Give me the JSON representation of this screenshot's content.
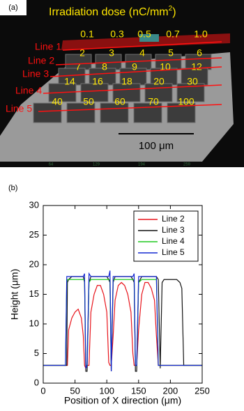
{
  "panel_a": {
    "label": "(a)",
    "title": "Irradiation dose (nC/mm",
    "title_sup": "2",
    "title_end": ")",
    "dose_rows": [
      [
        "0.1",
        "0.3",
        "0.5",
        "0.7",
        "1.0"
      ],
      [
        "2",
        "3",
        "4",
        "5",
        "6"
      ],
      [
        "7",
        "8",
        "9",
        "10",
        "12"
      ],
      [
        "14",
        "16",
        "18",
        "20",
        "30"
      ],
      [
        "40",
        "50",
        "60",
        "70",
        "100"
      ]
    ],
    "lines": [
      "Line 1",
      "Line 2",
      "Line 3",
      "Line 4",
      "Line 5"
    ],
    "scale_bar": "100 μm",
    "bottom_ticks": [
      "64",
      "129",
      "194",
      "259"
    ]
  },
  "chart_data": {
    "type": "line",
    "panel_label": "(b)",
    "x_label": "Position of X direction (μm)",
    "y_label": "Height (μm)",
    "xlim": [
      0,
      250
    ],
    "ylim": [
      0,
      30
    ],
    "xticks": [
      0,
      50,
      100,
      150,
      200,
      250
    ],
    "yticks": [
      0,
      5,
      10,
      15,
      20,
      25,
      30
    ],
    "legend": "upper right",
    "x": [
      0,
      10,
      20,
      30,
      35,
      37,
      38,
      40,
      45,
      50,
      55,
      60,
      63,
      65,
      67,
      69,
      72,
      75,
      80,
      85,
      90,
      95,
      100,
      103,
      105,
      107,
      110,
      113,
      118,
      123,
      128,
      133,
      138,
      141,
      143,
      145,
      147,
      150,
      155,
      160,
      165,
      170,
      175,
      178,
      181,
      184,
      187,
      190,
      195,
      200,
      205,
      210,
      215,
      218,
      221,
      225,
      235,
      250
    ],
    "series": [
      {
        "name": "Line 2",
        "color": "#e8141b",
        "values": [
          3,
          3,
          3,
          3,
          3,
          3,
          3,
          9,
          11,
          12,
          12.5,
          11,
          8,
          3,
          2.5,
          3,
          3,
          12,
          15,
          16.5,
          16.5,
          15,
          12,
          3.5,
          3,
          3,
          8,
          14,
          16.5,
          17,
          16.5,
          15,
          12,
          5,
          3,
          3,
          3,
          9,
          15,
          17,
          17,
          16,
          14,
          8,
          3,
          3,
          3,
          3,
          3,
          3,
          3,
          3,
          3,
          3,
          3,
          3,
          3,
          3
        ]
      },
      {
        "name": "Line 3",
        "color": "#111111",
        "values": [
          3,
          3,
          3,
          3,
          3,
          3,
          17,
          17.5,
          18,
          18,
          18,
          18,
          18,
          17,
          2,
          2,
          17,
          18,
          18,
          18,
          18,
          18,
          18,
          17.5,
          17,
          2,
          17,
          18,
          18,
          18,
          18,
          18,
          18,
          17.5,
          17,
          2,
          2,
          17,
          18,
          18,
          18,
          18,
          18,
          18,
          17.5,
          2.5,
          17,
          17.5,
          17.5,
          17.5,
          17.5,
          17.5,
          17,
          16,
          3,
          3,
          3,
          3
        ]
      },
      {
        "name": "Line 4",
        "color": "#1ec81e",
        "values": [
          3,
          3,
          3,
          3,
          3,
          17,
          17.5,
          17.5,
          17.5,
          17.5,
          17.5,
          17.5,
          17.5,
          17.5,
          3,
          3,
          17,
          17.5,
          17.5,
          17.5,
          17.5,
          17.5,
          17.5,
          17.5,
          17.5,
          3,
          17.5,
          17.5,
          17.5,
          17.5,
          17.5,
          17.5,
          17.5,
          17.5,
          17.5,
          3,
          3,
          17,
          17.5,
          17.5,
          17.5,
          17.5,
          17.5,
          17.5,
          3,
          3,
          3,
          3,
          3,
          3,
          3,
          3,
          3,
          3,
          3,
          3,
          3,
          3
        ]
      },
      {
        "name": "Line 5",
        "color": "#1428d2",
        "values": [
          3,
          3,
          3,
          3,
          3,
          18,
          18,
          18,
          18,
          18,
          18,
          18,
          18,
          18.5,
          2.5,
          3,
          18.5,
          18,
          18,
          18,
          18,
          18,
          18,
          18,
          19,
          2,
          18,
          18,
          18,
          18,
          18,
          18,
          18,
          18,
          18.5,
          3,
          3,
          18,
          18,
          18,
          18,
          18,
          18,
          18,
          3,
          3,
          3,
          3,
          3,
          3,
          3,
          3,
          3,
          3,
          3,
          3,
          3,
          3
        ]
      }
    ]
  }
}
